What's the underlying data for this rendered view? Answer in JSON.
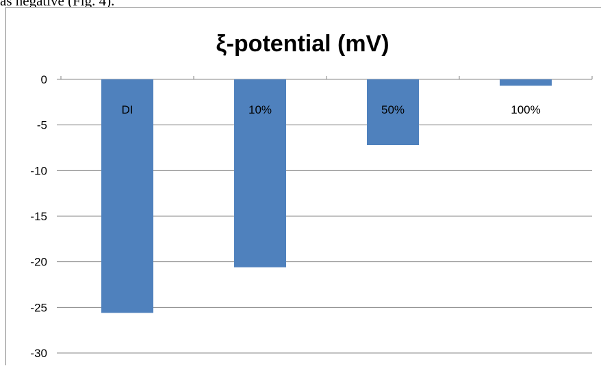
{
  "page": {
    "caption_fragment": "as negative (Fig. 4)."
  },
  "chart_data": {
    "type": "bar",
    "title": "ξ-potential (mV)",
    "xlabel": "",
    "ylabel": "",
    "categories": [
      "DI",
      "10%",
      "50%",
      "100%"
    ],
    "series": [
      {
        "values": [
          -25.6,
          -20.6,
          -7.2,
          -0.7
        ]
      }
    ],
    "ylim": [
      -30,
      0
    ],
    "yticks": [
      "0",
      "-5",
      "-10",
      "-15",
      "-20",
      "-25",
      "-30"
    ],
    "grid": true,
    "legend": "none",
    "bar_color": "#4f81bd",
    "grid_color": "#868686",
    "text_color": "#000000"
  }
}
